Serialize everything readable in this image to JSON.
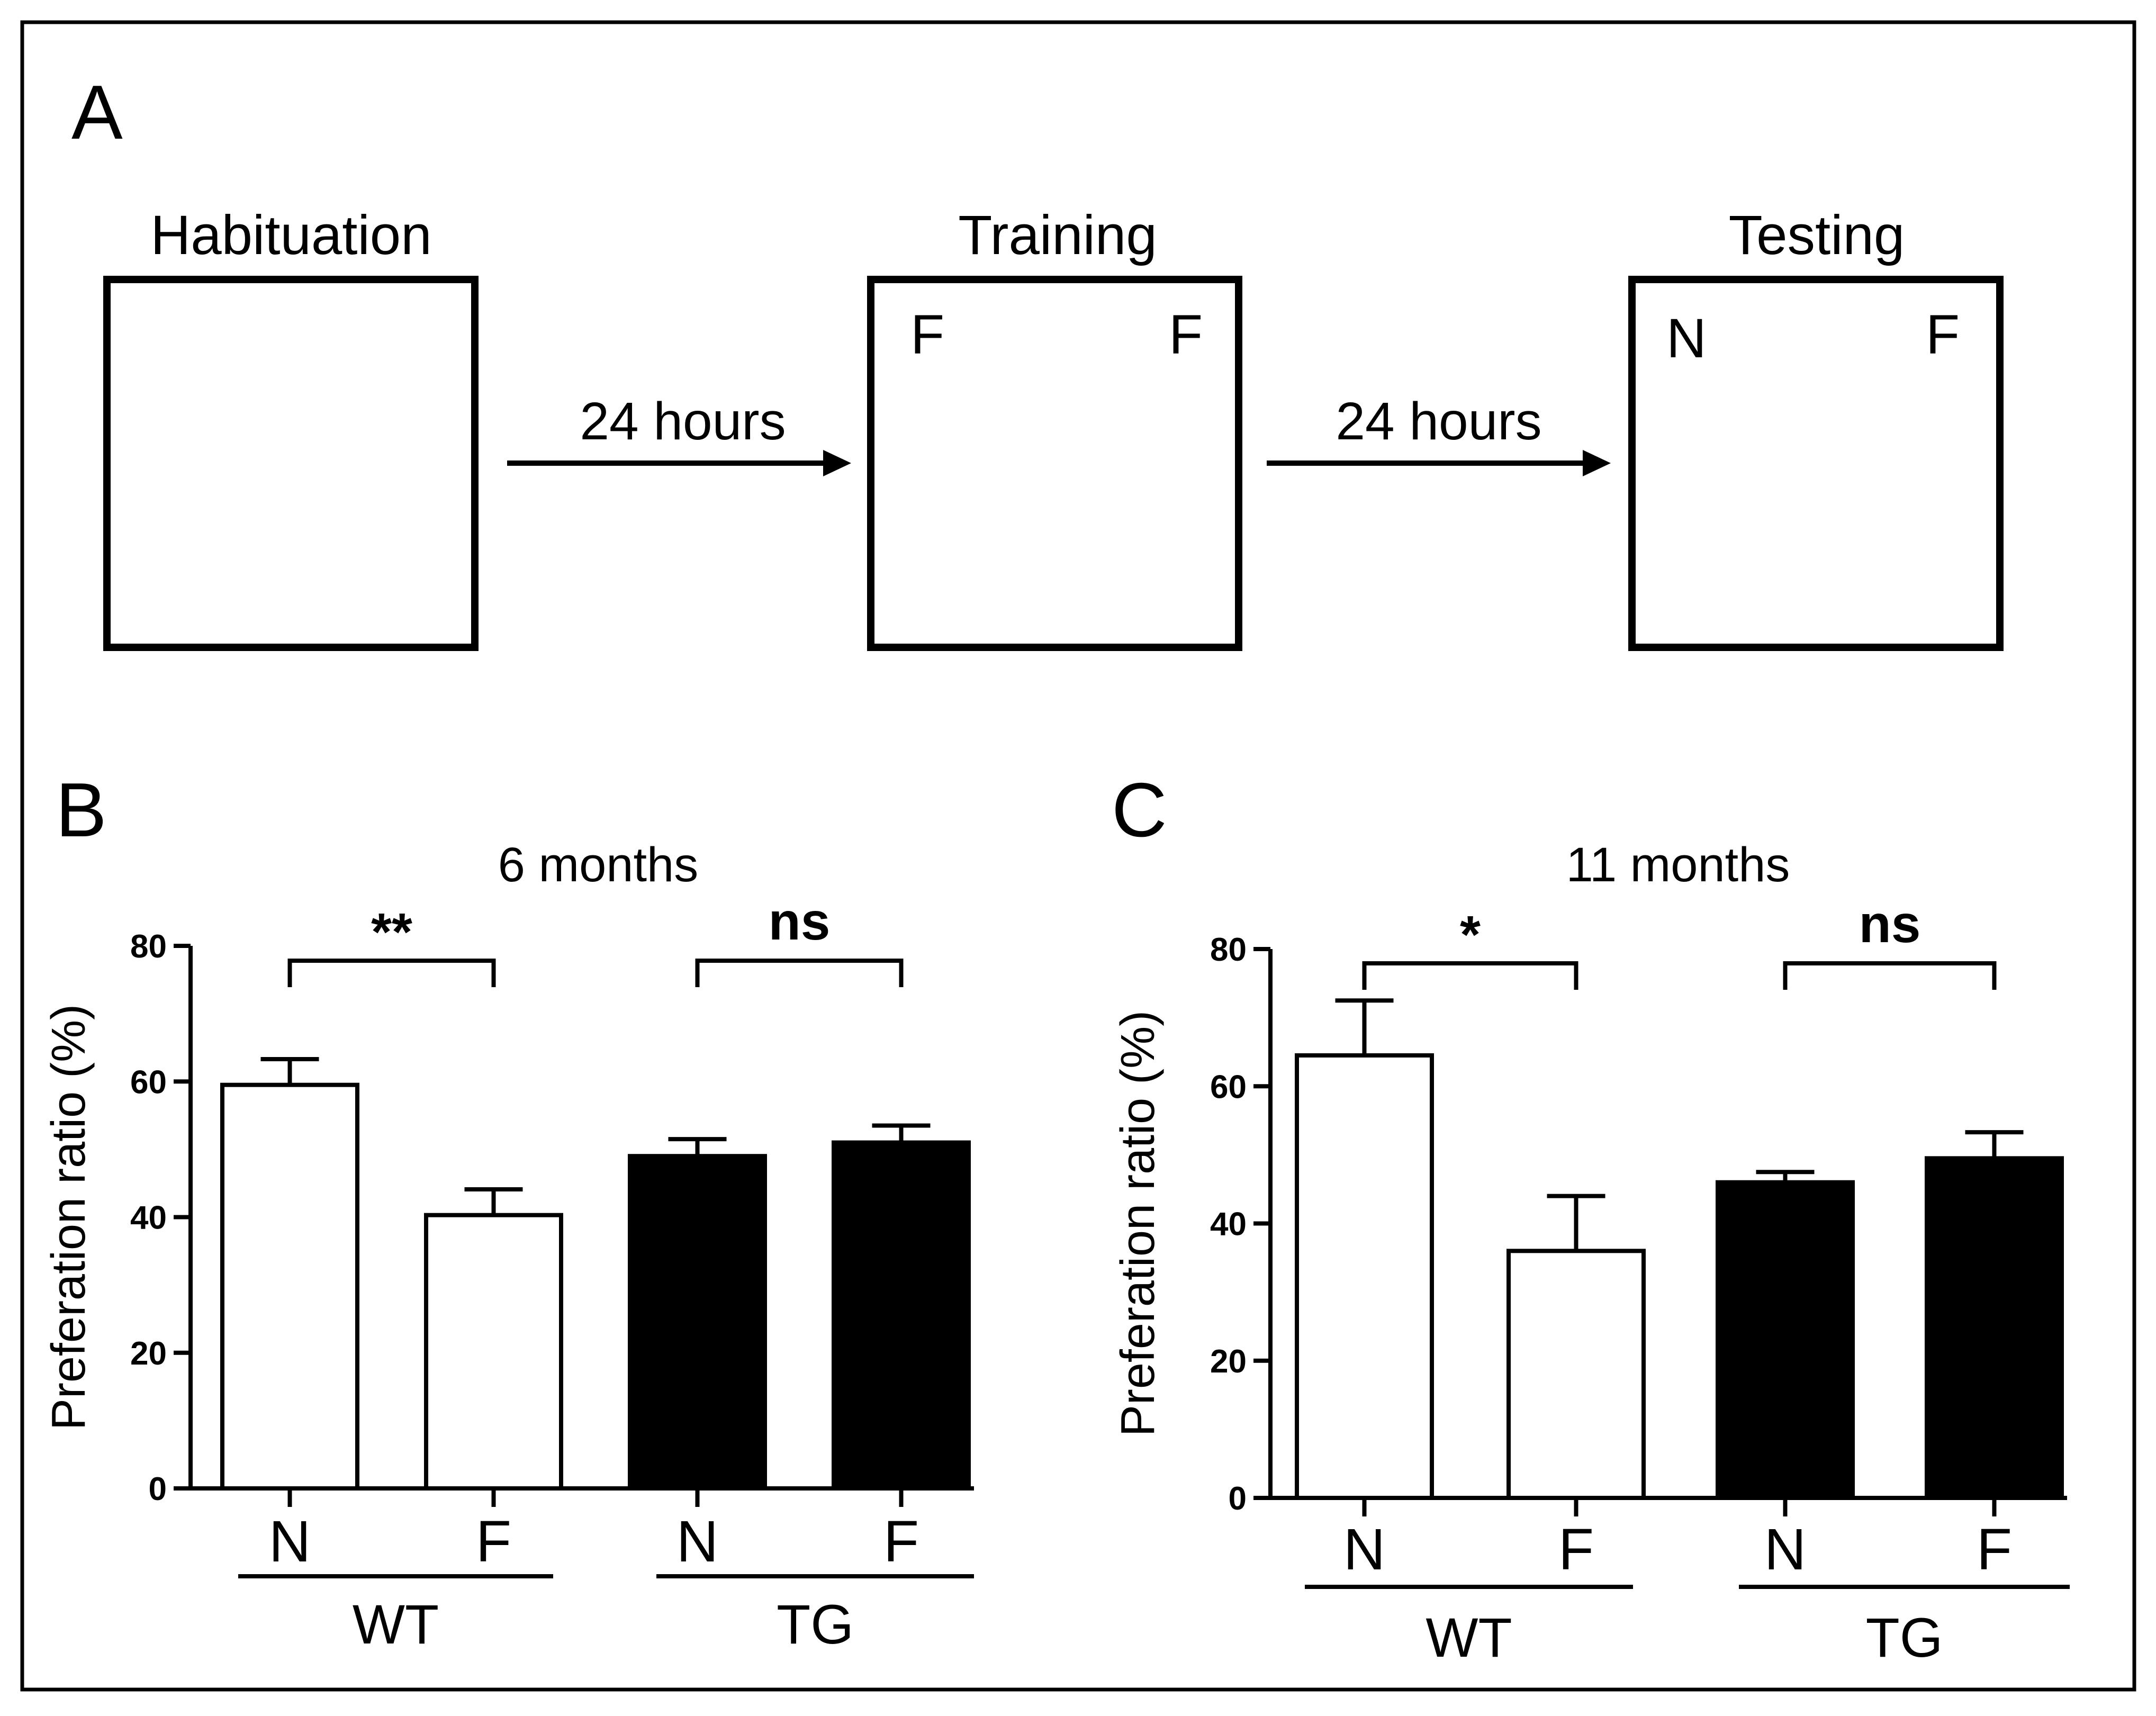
{
  "panel_a": {
    "letter": "A",
    "stages": [
      {
        "title": "Habituation",
        "left_label": "",
        "right_label": ""
      },
      {
        "title": "Training",
        "left_label": "F",
        "right_label": "F"
      },
      {
        "title": "Testing",
        "left_label": "N",
        "right_label": "F"
      }
    ],
    "arrows": [
      "24 hours",
      "24 hours"
    ]
  },
  "chart_data": [
    {
      "type": "bar",
      "panel": "B",
      "title": "6 months",
      "ylabel": "Preferation ratio  (%)",
      "xlabel": "",
      "ylim": [
        0,
        80
      ],
      "yticks": [
        0,
        20,
        40,
        60,
        80
      ],
      "categories": [
        "N",
        "F",
        "N",
        "F"
      ],
      "groups": [
        {
          "name": "WT",
          "categories": [
            "N",
            "F"
          ]
        },
        {
          "name": "TG",
          "categories": [
            "N",
            "F"
          ]
        }
      ],
      "values": [
        59.5,
        40.3,
        49.0,
        51.0
      ],
      "errors": [
        3.8,
        3.8,
        2.5,
        2.5
      ],
      "fills": [
        "#ffffff",
        "#ffffff",
        "#000000",
        "#000000"
      ],
      "significance": [
        {
          "label": "**",
          "from": 0,
          "to": 1
        },
        {
          "label": "ns",
          "from": 2,
          "to": 3
        }
      ]
    },
    {
      "type": "bar",
      "panel": "C",
      "title": "11 months",
      "ylabel": "Preferation ratio  (%)",
      "xlabel": "",
      "ylim": [
        0,
        80
      ],
      "yticks": [
        0,
        20,
        40,
        60,
        80
      ],
      "categories": [
        "N",
        "F",
        "N",
        "F"
      ],
      "groups": [
        {
          "name": "WT",
          "categories": [
            "N",
            "F"
          ]
        },
        {
          "name": "TG",
          "categories": [
            "N",
            "F"
          ]
        }
      ],
      "values": [
        64.5,
        36.0,
        46.0,
        49.5
      ],
      "errors": [
        8.0,
        8.0,
        1.5,
        3.8
      ],
      "fills": [
        "#ffffff",
        "#ffffff",
        "#000000",
        "#000000"
      ],
      "significance": [
        {
          "label": "*",
          "from": 0,
          "to": 1
        },
        {
          "label": "ns",
          "from": 2,
          "to": 3
        }
      ]
    }
  ]
}
